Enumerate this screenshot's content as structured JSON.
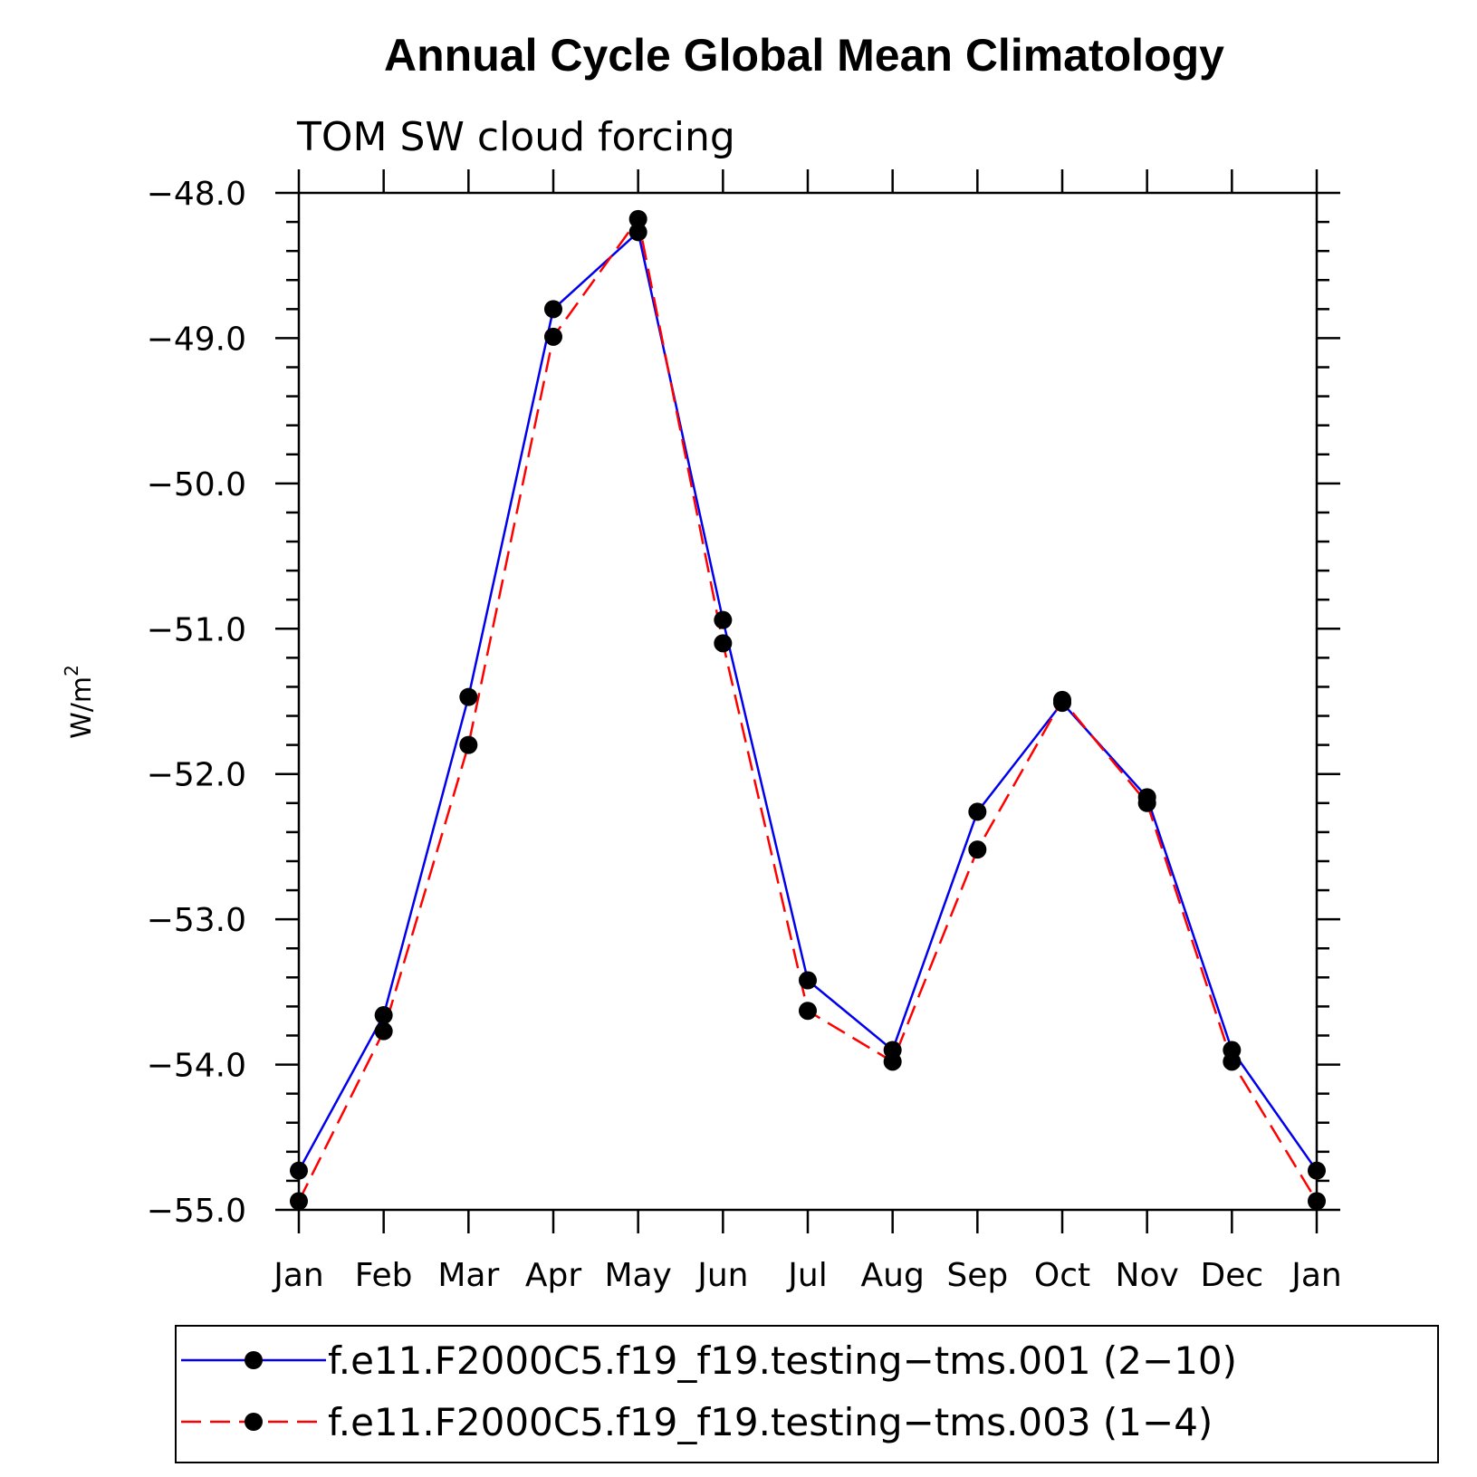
{
  "chart_data": {
    "type": "line",
    "title": "Annual Cycle Global Mean Climatology",
    "subtitle": "TOM SW cloud forcing",
    "ylabel": "W/m",
    "ylabel_superscript": "2",
    "xlabel": "",
    "categories": [
      "Jan",
      "Feb",
      "Mar",
      "Apr",
      "May",
      "Jun",
      "Jul",
      "Aug",
      "Sep",
      "Oct",
      "Nov",
      "Dec",
      "Jan"
    ],
    "ylim": [
      -55.0,
      -48.0
    ],
    "yticks": [
      -48.0,
      -49.0,
      -50.0,
      -51.0,
      -52.0,
      -53.0,
      -54.0,
      -55.0
    ],
    "ytick_labels": [
      "−48.0",
      "−49.0",
      "−50.0",
      "−51.0",
      "−52.0",
      "−53.0",
      "−54.0",
      "−55.0"
    ],
    "grid": false,
    "legend_position": "bottom",
    "series": [
      {
        "name": "f.e11.F2000C5.f19_f19.testing−tms.001 (2−10)",
        "color": "#0000ee",
        "dash": "solid",
        "marker": "circle",
        "values": [
          -54.73,
          -53.66,
          -51.47,
          -48.8,
          -48.27,
          -50.94,
          -53.42,
          -53.9,
          -52.26,
          -51.51,
          -52.16,
          -53.9,
          -54.73
        ]
      },
      {
        "name": "f.e11.F2000C5.f19_f19.testing−tms.003 (1−4)",
        "color": "#ff0000",
        "dash": "dashed",
        "marker": "circle",
        "values": [
          -54.94,
          -53.77,
          -51.8,
          -48.99,
          -48.18,
          -51.1,
          -53.63,
          -53.98,
          -52.52,
          -51.49,
          -52.2,
          -53.98,
          -54.94
        ]
      }
    ]
  }
}
